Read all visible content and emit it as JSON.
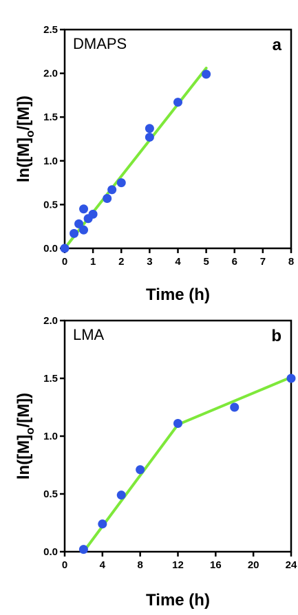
{
  "chart_data": [
    {
      "type": "scatter",
      "panel_label": "a",
      "inset_label": "DMAPS",
      "xlabel": "Time (h)",
      "ylabel_parts": {
        "main": "ln([M]",
        "sub": "o",
        "tail": "/[M])"
      },
      "xlim": [
        0,
        8
      ],
      "ylim": [
        0,
        2.5
      ],
      "x_ticks": [
        0,
        1,
        2,
        3,
        4,
        5,
        6,
        7,
        8
      ],
      "x_tick_labels": [
        "0",
        "1",
        "2",
        "3",
        "4",
        "5",
        "6",
        "7",
        "8"
      ],
      "y_ticks": [
        0,
        0.5,
        1.0,
        1.5,
        2.0,
        2.5
      ],
      "y_tick_labels": [
        "0.0",
        "0.5",
        "1.0",
        "1.5",
        "2.0",
        "2.5"
      ],
      "points": [
        {
          "x": 0,
          "y": 0.0
        },
        {
          "x": 0.33,
          "y": 0.17
        },
        {
          "x": 0.5,
          "y": 0.28
        },
        {
          "x": 0.67,
          "y": 0.21
        },
        {
          "x": 0.67,
          "y": 0.45
        },
        {
          "x": 0.83,
          "y": 0.34
        },
        {
          "x": 1.0,
          "y": 0.39
        },
        {
          "x": 1.5,
          "y": 0.57
        },
        {
          "x": 1.67,
          "y": 0.67
        },
        {
          "x": 2.0,
          "y": 0.75
        },
        {
          "x": 3.0,
          "y": 1.27
        },
        {
          "x": 3.0,
          "y": 1.37
        },
        {
          "x": 4.0,
          "y": 1.67
        },
        {
          "x": 5.0,
          "y": 1.99
        }
      ],
      "fit_line": [
        {
          "x": 0,
          "y": 0.0
        },
        {
          "x": 5.0,
          "y": 2.06
        }
      ],
      "grid": false,
      "colors": {
        "points": "#2f55e4",
        "fit": "#7ee83a",
        "axes": "#000000"
      }
    },
    {
      "type": "scatter",
      "panel_label": "b",
      "inset_label": "LMA",
      "xlabel": "Time (h)",
      "ylabel_parts": {
        "main": "ln([M]",
        "sub": "o",
        "tail": "/[M])"
      },
      "xlim": [
        0,
        24
      ],
      "ylim": [
        0,
        2.0
      ],
      "x_ticks": [
        0,
        4,
        8,
        12,
        16,
        20,
        24
      ],
      "x_tick_labels": [
        "0",
        "4",
        "8",
        "12",
        "16",
        "20",
        "24"
      ],
      "y_ticks": [
        0,
        0.5,
        1.0,
        1.5,
        2.0
      ],
      "y_tick_labels": [
        "0.0",
        "0.5",
        "1.0",
        "1.5",
        "2.0"
      ],
      "points": [
        {
          "x": 2,
          "y": 0.02
        },
        {
          "x": 4,
          "y": 0.24
        },
        {
          "x": 6,
          "y": 0.49
        },
        {
          "x": 8,
          "y": 0.71
        },
        {
          "x": 12,
          "y": 1.11
        },
        {
          "x": 18,
          "y": 1.25
        },
        {
          "x": 24,
          "y": 1.5
        }
      ],
      "fit_line": [
        {
          "x": 2,
          "y": 0.0
        },
        {
          "x": 12,
          "y": 1.1
        },
        {
          "x": 24,
          "y": 1.51
        }
      ],
      "grid": false,
      "colors": {
        "points": "#2f55e4",
        "fit": "#7ee83a",
        "axes": "#000000"
      }
    }
  ]
}
